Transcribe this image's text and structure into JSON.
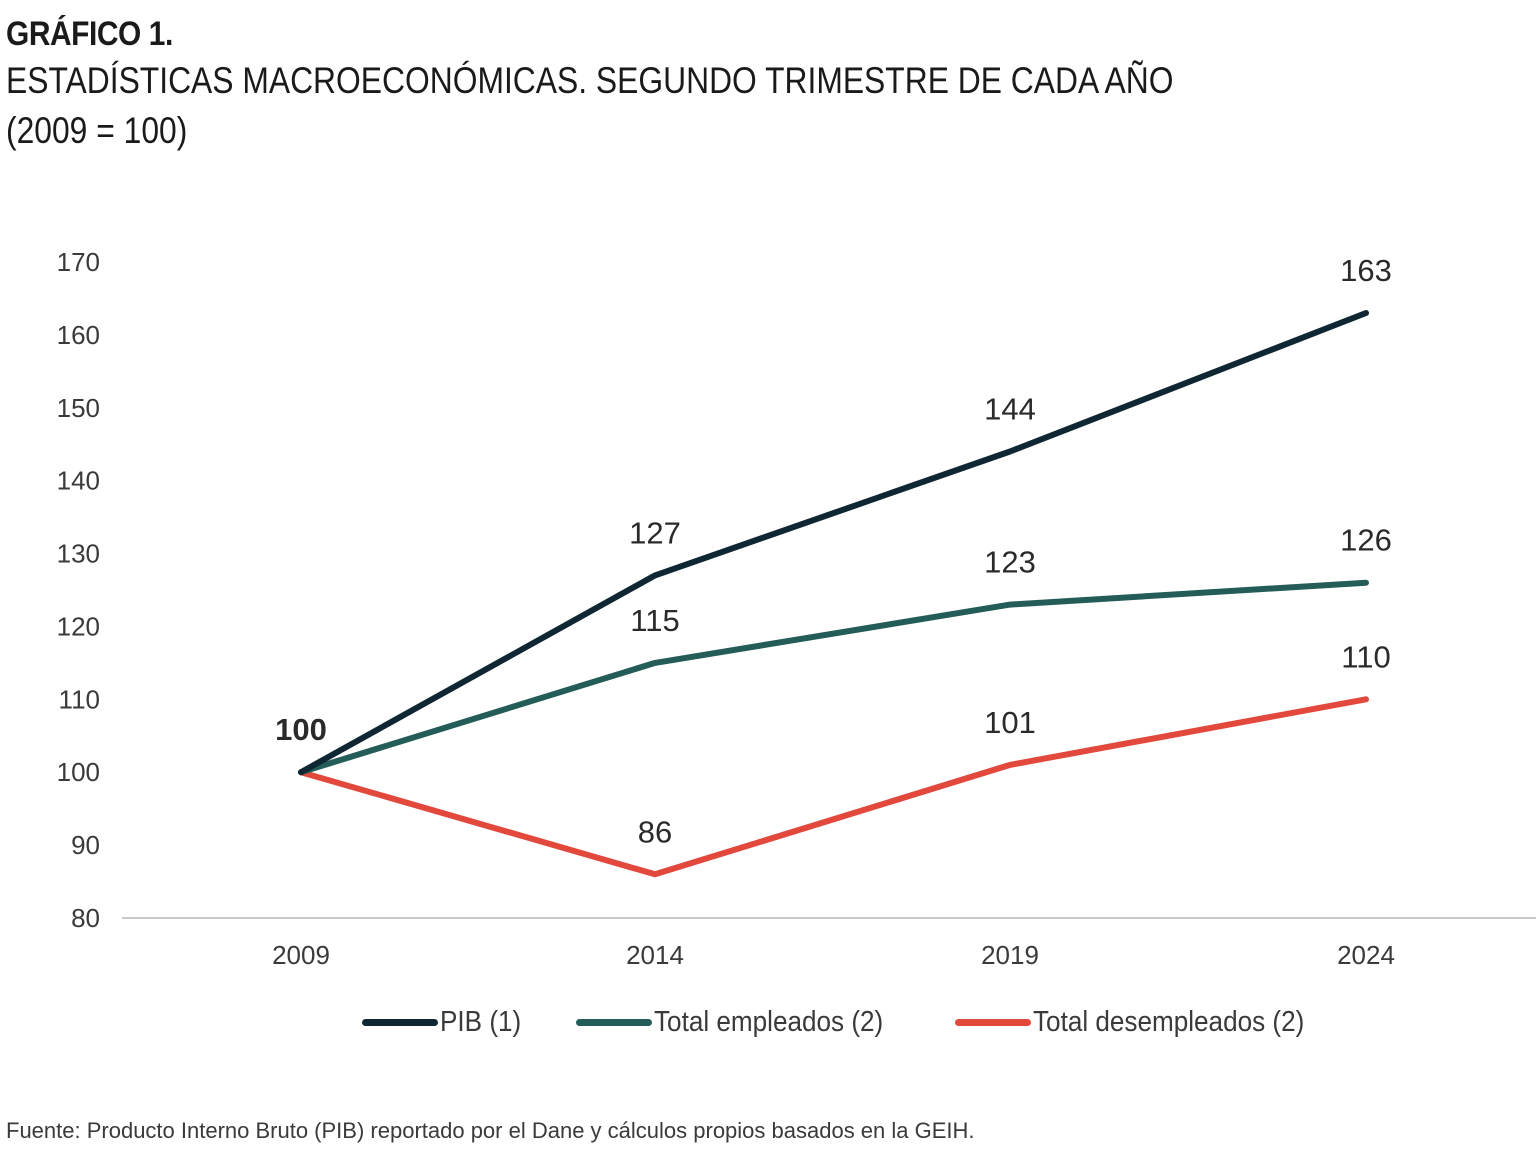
{
  "header": {
    "chart_number": "GRÁFICO 1.",
    "title": "ESTADÍSTICAS MACROECONÓMICAS. SEGUNDO TRIMESTRE DE CADA AÑO",
    "subtitle": "(2009 = 100)"
  },
  "chart_data": {
    "type": "line",
    "title": "ESTADÍSTICAS MACROECONÓMICAS. SEGUNDO TRIMESTRE DE CADA AÑO",
    "subtitle": "(2009 = 100)",
    "xlabel": "",
    "ylabel": "",
    "categories": [
      "2009",
      "2014",
      "2019",
      "2024"
    ],
    "y_ticks": [
      80,
      90,
      100,
      110,
      120,
      130,
      140,
      150,
      160,
      170
    ],
    "ylim": [
      80,
      170
    ],
    "grid": false,
    "legend_position": "bottom",
    "series": [
      {
        "name": "PIB (1)",
        "color": "#0f2733",
        "values": [
          100,
          127,
          144,
          163
        ],
        "labels": [
          "100",
          "127",
          "144",
          "163"
        ]
      },
      {
        "name": "Total empleados (2)",
        "color": "#245c58",
        "values": [
          100,
          115,
          123,
          126
        ],
        "labels": [
          "",
          "115",
          "123",
          "126"
        ]
      },
      {
        "name": "Total desempleados (2)",
        "color": "#e2483c",
        "values": [
          100,
          86,
          101,
          110
        ],
        "labels": [
          "",
          "86",
          "101",
          "110"
        ]
      }
    ]
  },
  "legend": {
    "items": [
      {
        "label": "PIB (1)",
        "color": "#0f2733"
      },
      {
        "label": "Total empleados (2)",
        "color": "#245c58"
      },
      {
        "label": "Total desempleados (2)",
        "color": "#e2483c"
      }
    ]
  },
  "source": "Fuente: Producto Interno Bruto (PIB) reportado por el Dane y cálculos propios basados en la GEIH."
}
